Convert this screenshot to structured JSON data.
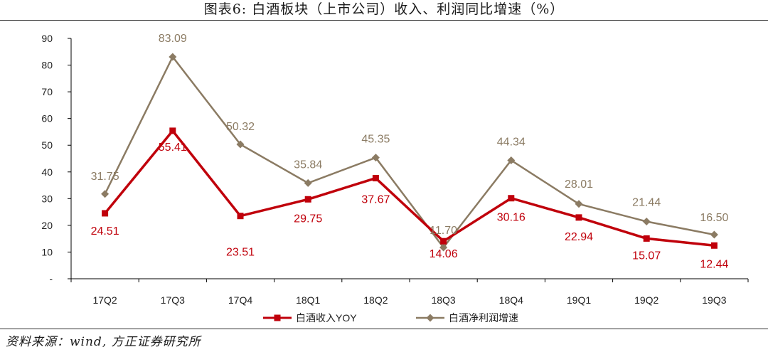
{
  "figure": {
    "title": "图表6:  白酒板块（上市公司）收入、利润同比增速（%）",
    "source": "资料来源：wind, 方正证券研究所"
  },
  "chart_data": {
    "type": "line",
    "categories": [
      "17Q2",
      "17Q3",
      "17Q4",
      "18Q1",
      "18Q2",
      "18Q3",
      "18Q4",
      "19Q1",
      "19Q2",
      "19Q3"
    ],
    "y_ticks": [
      "-",
      "10",
      "20",
      "30",
      "40",
      "50",
      "60",
      "70",
      "80",
      "90"
    ],
    "ylim": [
      0,
      90
    ],
    "grid": false,
    "legend_position": "bottom",
    "series": [
      {
        "name": "白酒收入YOY",
        "color": "#c0000b",
        "marker": "square",
        "values": [
          24.51,
          55.41,
          23.51,
          29.75,
          37.67,
          14.06,
          30.16,
          22.94,
          15.07,
          12.44
        ],
        "labels": [
          "24.51",
          "55.41",
          "23.51",
          "29.75",
          "37.67",
          "14.06",
          "30.16",
          "22.94",
          "15.07",
          "12.44"
        ]
      },
      {
        "name": "白酒净利润增速",
        "color": "#8b7b63",
        "marker": "diamond",
        "values": [
          31.75,
          83.09,
          50.32,
          35.84,
          45.35,
          11.7,
          44.34,
          28.01,
          21.44,
          16.5
        ],
        "labels": [
          "31.75",
          "83.09",
          "50.32",
          "35.84",
          "45.35",
          "11.70",
          "44.34",
          "28.01",
          "21.44",
          "16.50"
        ]
      }
    ]
  }
}
